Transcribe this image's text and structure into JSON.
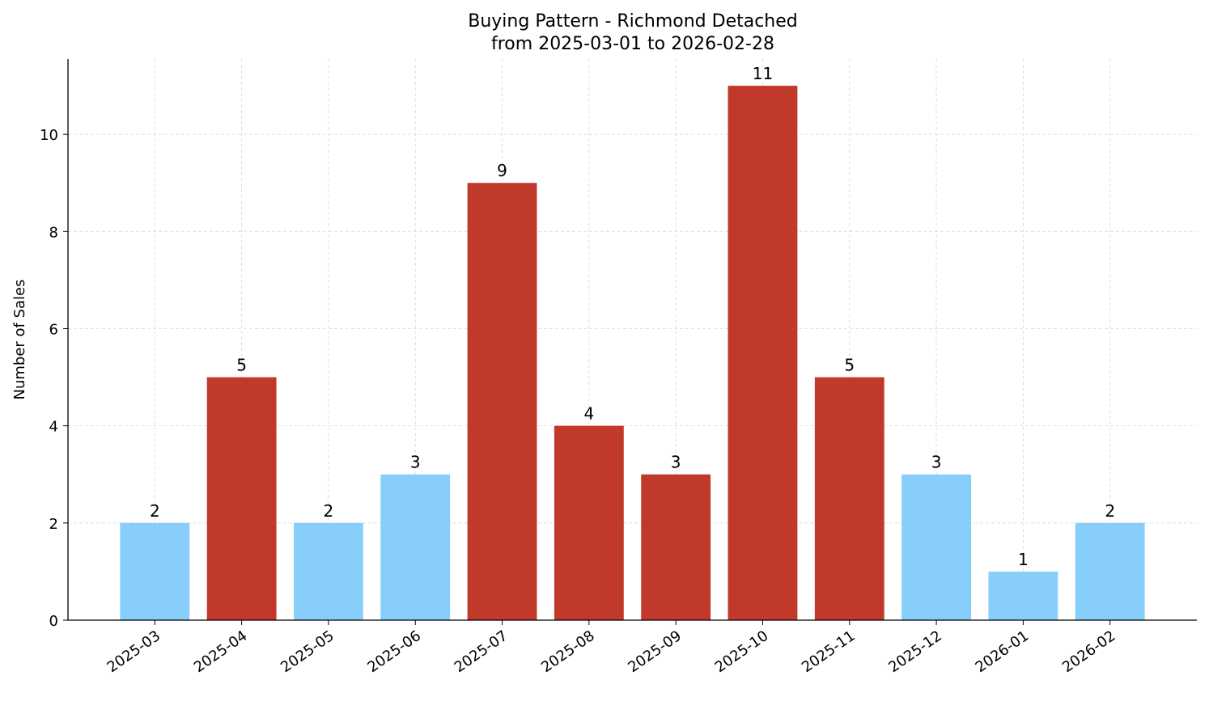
{
  "chart_data": {
    "type": "bar",
    "title": "Buying Pattern - Richmond Detached",
    "subtitle": "from 2025-03-01 to 2026-02-28",
    "xlabel": "",
    "ylabel": "Number of Sales",
    "categories": [
      "2025-03",
      "2025-04",
      "2025-05",
      "2025-06",
      "2025-07",
      "2025-08",
      "2025-09",
      "2025-10",
      "2025-11",
      "2025-12",
      "2026-01",
      "2026-02"
    ],
    "values": [
      2,
      5,
      2,
      3,
      9,
      4,
      3,
      11,
      5,
      3,
      1,
      2
    ],
    "bar_colors": [
      "#87CEFA",
      "#C0392B",
      "#87CEFA",
      "#87CEFA",
      "#C0392B",
      "#C0392B",
      "#C0392B",
      "#C0392B",
      "#C0392B",
      "#87CEFA",
      "#87CEFA",
      "#87CEFA"
    ],
    "yticks": [
      0,
      2,
      4,
      6,
      8,
      10
    ],
    "ylim": [
      0,
      11.55
    ],
    "grid": true,
    "data_labels": true
  }
}
